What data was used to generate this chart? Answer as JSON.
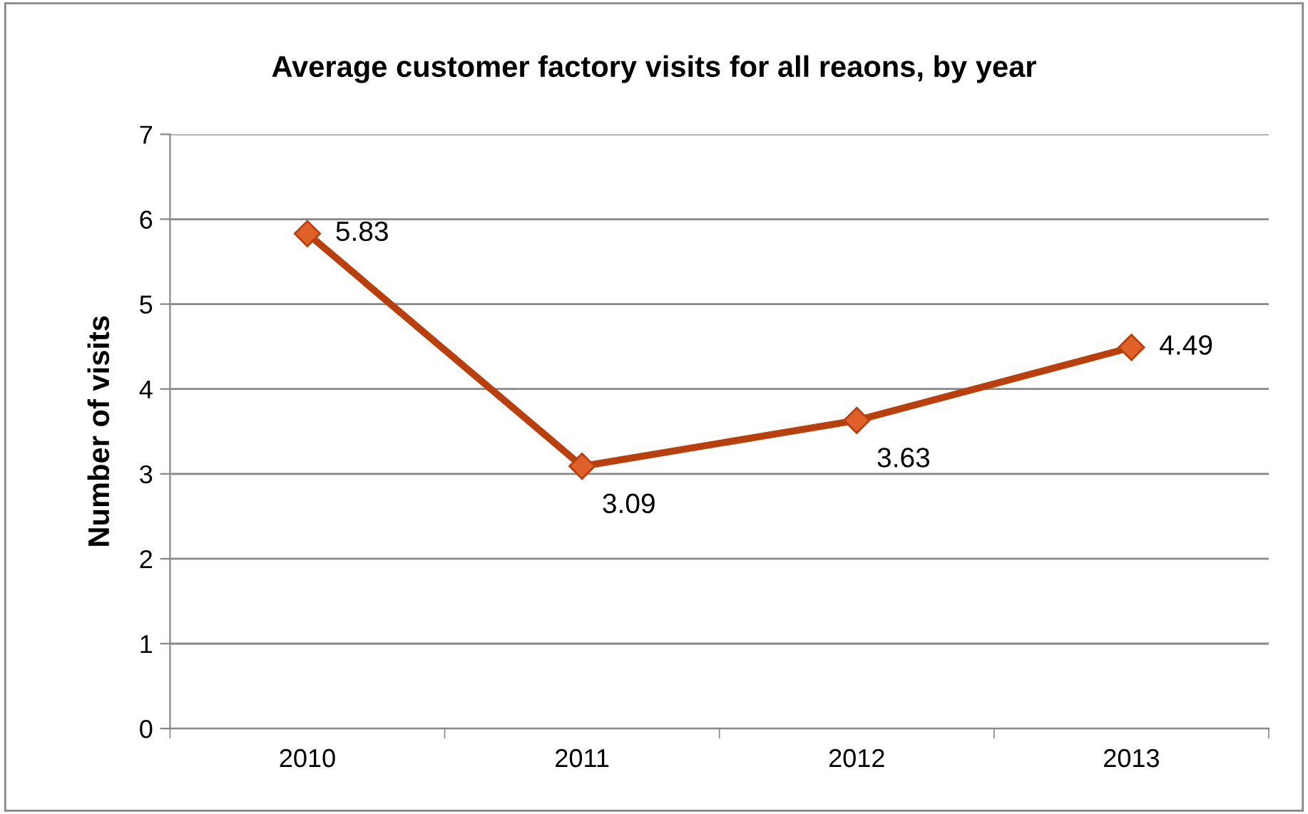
{
  "chart_data": {
    "type": "line",
    "title": "Average customer factory visits for all reaons, by year",
    "ylabel": "Number of visits",
    "categories": [
      "2010",
      "2011",
      "2012",
      "2013"
    ],
    "series": [
      {
        "color": "#b8400f",
        "values": [
          5.83,
          3.09,
          3.63,
          4.49
        ]
      }
    ],
    "ylim": [
      0,
      7
    ],
    "yticks": [
      0,
      1,
      2,
      3,
      4,
      5,
      6,
      7
    ],
    "grid": "y",
    "marker": "diamond",
    "line_style": "solid",
    "data_labels": true
  }
}
